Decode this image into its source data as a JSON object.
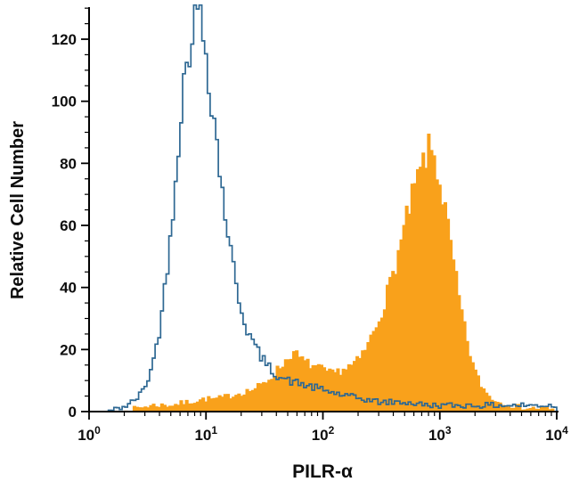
{
  "chart_data": {
    "type": "histogram",
    "title": "",
    "xlabel": "PILR-α",
    "ylabel": "Relative Cell Number",
    "x_scale": "log10",
    "x_decades": [
      0,
      4
    ],
    "x_major_tick_exponents": [
      0,
      1,
      2,
      3,
      4
    ],
    "ylim": [
      0,
      133
    ],
    "y_major_ticks": [
      0,
      20,
      40,
      60,
      80,
      100,
      120
    ],
    "y_minor_step": 5,
    "grid": false,
    "legend": "none",
    "series": [
      {
        "name": "stained-filled-orange",
        "style": "filled",
        "color": "#F9A11B",
        "peak_log10x": 2.92,
        "peak_y": 85,
        "points": [
          [
            0.0,
            0
          ],
          [
            0.3,
            0
          ],
          [
            0.4,
            1
          ],
          [
            0.55,
            2
          ],
          [
            0.7,
            2
          ],
          [
            0.85,
            3
          ],
          [
            1.0,
            4
          ],
          [
            1.1,
            4
          ],
          [
            1.2,
            5
          ],
          [
            1.3,
            6
          ],
          [
            1.4,
            7
          ],
          [
            1.5,
            9
          ],
          [
            1.58,
            12
          ],
          [
            1.65,
            15
          ],
          [
            1.7,
            17
          ],
          [
            1.74,
            19
          ],
          [
            1.78,
            18
          ],
          [
            1.84,
            16
          ],
          [
            1.9,
            15
          ],
          [
            1.96,
            14
          ],
          [
            2.02,
            13
          ],
          [
            2.08,
            12
          ],
          [
            2.14,
            13
          ],
          [
            2.2,
            14
          ],
          [
            2.26,
            15
          ],
          [
            2.32,
            17
          ],
          [
            2.38,
            21
          ],
          [
            2.44,
            26
          ],
          [
            2.5,
            32
          ],
          [
            2.56,
            39
          ],
          [
            2.62,
            47
          ],
          [
            2.68,
            56
          ],
          [
            2.73,
            64
          ],
          [
            2.78,
            71
          ],
          [
            2.82,
            76
          ],
          [
            2.86,
            80
          ],
          [
            2.89,
            83
          ],
          [
            2.92,
            85
          ],
          [
            2.96,
            81
          ],
          [
            3.0,
            74
          ],
          [
            3.05,
            64
          ],
          [
            3.1,
            52
          ],
          [
            3.15,
            40
          ],
          [
            3.2,
            29
          ],
          [
            3.25,
            20
          ],
          [
            3.3,
            13
          ],
          [
            3.36,
            8
          ],
          [
            3.42,
            5
          ],
          [
            3.5,
            3
          ],
          [
            3.6,
            2
          ],
          [
            3.75,
            1
          ],
          [
            3.9,
            1
          ],
          [
            4.0,
            0
          ]
        ]
      },
      {
        "name": "control-open-blue",
        "style": "outline",
        "color": "#2E6893",
        "peak_log10x": 0.93,
        "peak_y": 130,
        "points": [
          [
            0.0,
            0
          ],
          [
            0.15,
            0
          ],
          [
            0.25,
            1
          ],
          [
            0.33,
            2
          ],
          [
            0.4,
            4
          ],
          [
            0.45,
            6
          ],
          [
            0.5,
            10
          ],
          [
            0.55,
            16
          ],
          [
            0.6,
            26
          ],
          [
            0.65,
            40
          ],
          [
            0.7,
            58
          ],
          [
            0.74,
            76
          ],
          [
            0.78,
            94
          ],
          [
            0.82,
            108
          ],
          [
            0.85,
            116
          ],
          [
            0.88,
            123
          ],
          [
            0.91,
            128
          ],
          [
            0.93,
            130
          ],
          [
            0.96,
            126
          ],
          [
            0.99,
            119
          ],
          [
            1.02,
            110
          ],
          [
            1.05,
            100
          ],
          [
            1.09,
            88
          ],
          [
            1.13,
            74
          ],
          [
            1.18,
            60
          ],
          [
            1.23,
            47
          ],
          [
            1.28,
            37
          ],
          [
            1.33,
            29
          ],
          [
            1.38,
            24
          ],
          [
            1.45,
            19
          ],
          [
            1.52,
            15
          ],
          [
            1.6,
            12
          ],
          [
            1.7,
            10
          ],
          [
            1.8,
            9
          ],
          [
            1.9,
            8
          ],
          [
            2.0,
            7
          ],
          [
            2.1,
            6
          ],
          [
            2.2,
            5
          ],
          [
            2.35,
            4
          ],
          [
            2.5,
            3
          ],
          [
            2.7,
            3
          ],
          [
            2.9,
            2
          ],
          [
            3.2,
            2
          ],
          [
            3.5,
            2
          ],
          [
            3.8,
            2
          ],
          [
            4.0,
            2
          ]
        ]
      }
    ]
  },
  "colors": {
    "axis": "#000000",
    "tick_text": "#0d0d0d",
    "background": "#FFFFFF"
  }
}
